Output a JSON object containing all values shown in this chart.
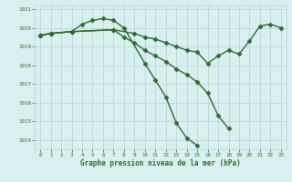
{
  "line1_x": [
    0,
    1,
    3,
    4,
    5,
    6,
    7,
    8,
    10,
    11,
    12,
    13,
    14,
    15
  ],
  "line1_y": [
    1019.6,
    1019.7,
    1019.8,
    1020.2,
    1020.4,
    1020.5,
    1020.4,
    1020.0,
    1018.1,
    1017.2,
    1016.3,
    1014.9,
    1014.1,
    1013.7
  ],
  "line2_x": [
    0,
    1,
    3,
    7,
    8,
    9,
    10,
    11,
    12,
    13,
    14,
    15,
    16,
    17,
    18
  ],
  "line2_y": [
    1019.6,
    1019.7,
    1019.8,
    1019.9,
    1019.5,
    1019.2,
    1018.8,
    1018.5,
    1018.2,
    1017.8,
    1017.5,
    1017.1,
    1016.5,
    1015.3,
    1014.6
  ],
  "line3_x": [
    0,
    1,
    3,
    7,
    9,
    10,
    11,
    12,
    13,
    14,
    15,
    16,
    17,
    18,
    19,
    20,
    21,
    22,
    23
  ],
  "line3_y": [
    1019.6,
    1019.7,
    1019.8,
    1019.9,
    1019.7,
    1019.5,
    1019.4,
    1019.2,
    1019.0,
    1018.8,
    1018.7,
    1018.1,
    1018.5,
    1018.8,
    1018.6,
    1019.3,
    1020.1,
    1020.2,
    1020.0
  ],
  "ylim": [
    1013.5,
    1021.2
  ],
  "xlim": [
    -0.5,
    23.5
  ],
  "yticks": [
    1014,
    1015,
    1016,
    1017,
    1018,
    1019,
    1020,
    1021
  ],
  "xticks": [
    0,
    1,
    2,
    3,
    4,
    5,
    6,
    7,
    8,
    9,
    10,
    11,
    12,
    13,
    14,
    15,
    16,
    17,
    18,
    19,
    20,
    21,
    22,
    23
  ],
  "xlabel": "Graphe pression niveau de la mer (hPa)",
  "line_color": "#2d6e2d",
  "bg_color": "#d8f0f0",
  "grid_color": "#b8d0d0",
  "tick_color": "#2d6e2d",
  "marker": "D",
  "markersize": 2.5,
  "linewidth": 1.0
}
